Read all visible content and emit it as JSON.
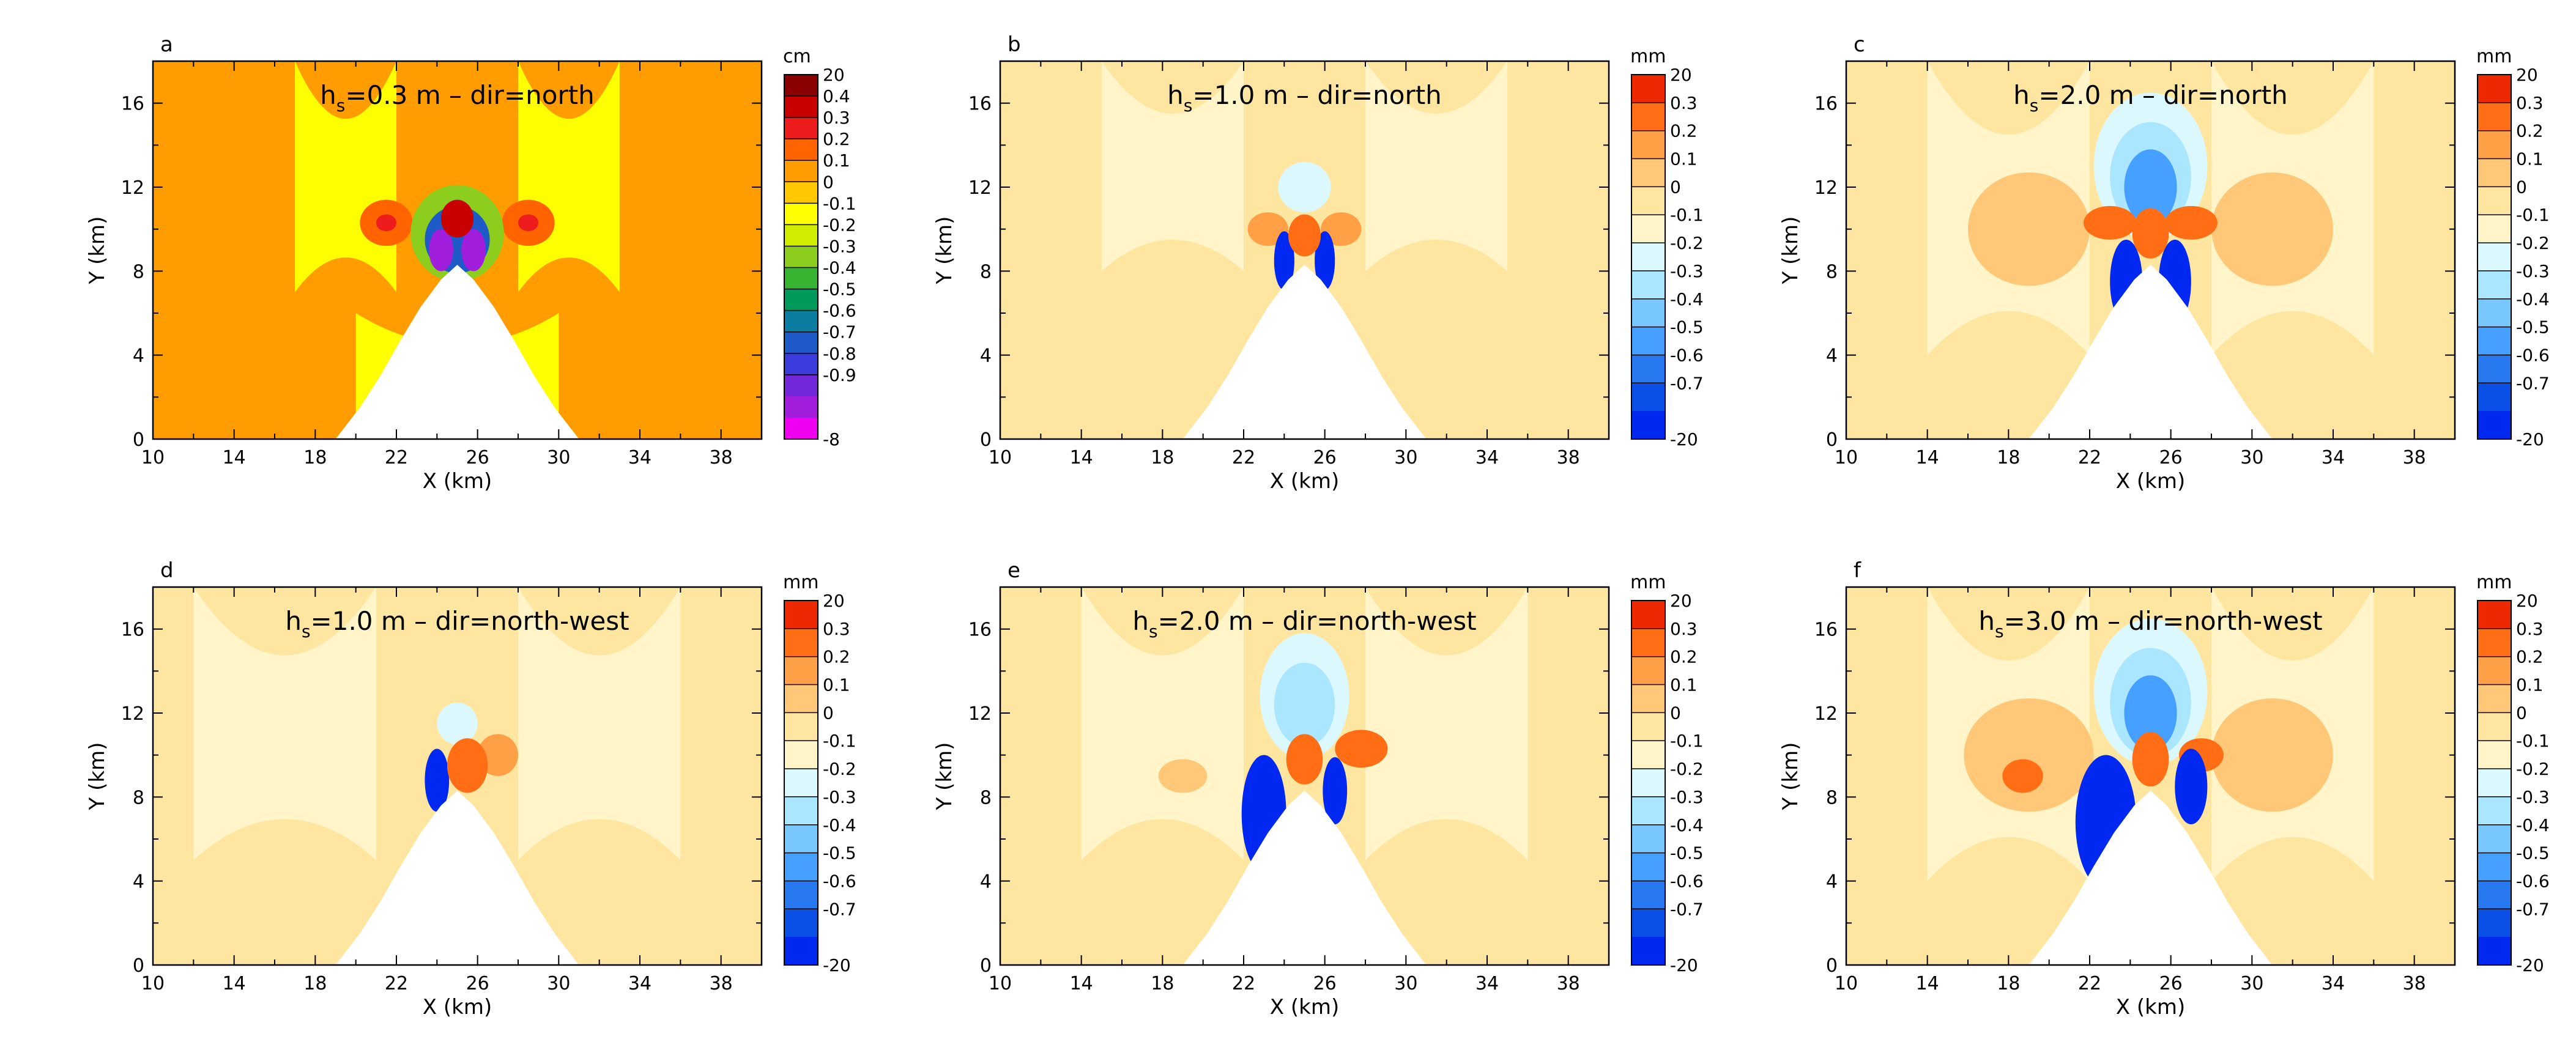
{
  "chart_data": [
    {
      "type": "heatmap",
      "panel_label": "a",
      "title_prefix": "h",
      "title_sub": "s",
      "title_rest": "=0.3 m – dir=north",
      "xlabel": "X (km)",
      "ylabel": "Y (km)",
      "xlim": [
        10,
        40
      ],
      "ylim": [
        0,
        18
      ],
      "xticks": [
        "10",
        "14",
        "18",
        "22",
        "26",
        "30",
        "34",
        "38"
      ],
      "yticks": [
        "0",
        "4",
        "8",
        "12",
        "16"
      ],
      "unit": "cm",
      "colorbar_labels": [
        "20",
        "0.4",
        "0.3",
        "0.2",
        "0.1",
        "0",
        "-0.1",
        "-0.2",
        "-0.3",
        "-0.4",
        "-0.5",
        "-0.6",
        "-0.7",
        "-0.8",
        "-0.9",
        "-8"
      ],
      "colorbar_colors": [
        "#8b0000",
        "#c80000",
        "#ee1c1c",
        "#ff6400",
        "#ff9d00",
        "#ffc800",
        "#ffff00",
        "#d2ec00",
        "#8ccd1e",
        "#37b432",
        "#009b5a",
        "#0a7da0",
        "#1e5ac8",
        "#3c3cdc",
        "#7328dc",
        "#a01edc",
        "#f000f0"
      ],
      "background_level": 0.12,
      "features": [
        {
          "kind": "band",
          "x0": 17,
          "y0": 7,
          "x1": 22,
          "y1": 18,
          "level": -0.05
        },
        {
          "kind": "band",
          "x0": 28,
          "y0": 7,
          "x1": 33,
          "y1": 18,
          "level": -0.05
        },
        {
          "kind": "band",
          "x0": 20,
          "y0": 0,
          "x1": 30,
          "y1": 6,
          "level": -0.05
        },
        {
          "kind": "blob",
          "x": 21.5,
          "y": 10.3,
          "rx": 1.3,
          "ry": 1.1,
          "level": 0.2
        },
        {
          "kind": "blob",
          "x": 21.5,
          "y": 10.3,
          "rx": 0.5,
          "ry": 0.4,
          "level": 0.3
        },
        {
          "kind": "blob",
          "x": 28.5,
          "y": 10.3,
          "rx": 1.3,
          "ry": 1.1,
          "level": 0.2
        },
        {
          "kind": "blob",
          "x": 28.5,
          "y": 10.3,
          "rx": 0.5,
          "ry": 0.4,
          "level": 0.3
        },
        {
          "kind": "blob",
          "x": 25,
          "y": 9.8,
          "rx": 2.3,
          "ry": 2.3,
          "level": -0.3
        },
        {
          "kind": "blob",
          "x": 25,
          "y": 9.5,
          "rx": 1.6,
          "ry": 1.6,
          "level": -0.7
        },
        {
          "kind": "blob",
          "x": 24.2,
          "y": 9.0,
          "rx": 0.6,
          "ry": 1.0,
          "level": -8
        },
        {
          "kind": "blob",
          "x": 25.8,
          "y": 9.0,
          "rx": 0.6,
          "ry": 1.0,
          "level": -8
        },
        {
          "kind": "blob",
          "x": 25,
          "y": 10.5,
          "rx": 0.8,
          "ry": 0.9,
          "level": 20
        }
      ]
    },
    {
      "type": "heatmap",
      "panel_label": "b",
      "title_prefix": "h",
      "title_sub": "s",
      "title_rest": "=1.0 m – dir=north",
      "xlabel": "X (km)",
      "ylabel": "Y (km)",
      "xlim": [
        10,
        40
      ],
      "ylim": [
        0,
        18
      ],
      "xticks": [
        "10",
        "14",
        "18",
        "22",
        "26",
        "30",
        "34",
        "38"
      ],
      "yticks": [
        "0",
        "4",
        "8",
        "12",
        "16"
      ],
      "unit": "mm",
      "colorbar_labels": [
        "20",
        "0.3",
        "0.2",
        "0.1",
        "0",
        "-0.1",
        "-0.2",
        "-0.3",
        "-0.4",
        "-0.5",
        "-0.6",
        "-0.7",
        "-20"
      ],
      "colorbar_colors": [
        "#ee2800",
        "#ff6e14",
        "#ffa046",
        "#ffc878",
        "#ffe6a0",
        "#fff5c8",
        "#dcf8ff",
        "#aae6ff",
        "#78c8ff",
        "#46a0ff",
        "#2878f0",
        "#0a50e6",
        "#0028f0"
      ],
      "background_level": 0.05,
      "features": [
        {
          "kind": "band",
          "x0": 15,
          "y0": 8,
          "x1": 22,
          "y1": 18,
          "level": -0.05
        },
        {
          "kind": "band",
          "x0": 28,
          "y0": 8,
          "x1": 35,
          "y1": 18,
          "level": -0.05
        },
        {
          "kind": "blob",
          "x": 25,
          "y": 12,
          "rx": 1.3,
          "ry": 1.2,
          "level": -0.15
        },
        {
          "kind": "blob",
          "x": 23.2,
          "y": 10,
          "rx": 1.0,
          "ry": 0.8,
          "level": 0.2
        },
        {
          "kind": "blob",
          "x": 26.8,
          "y": 10,
          "rx": 1.0,
          "ry": 0.8,
          "level": 0.2
        },
        {
          "kind": "blob",
          "x": 24.0,
          "y": 8.5,
          "rx": 0.5,
          "ry": 1.4,
          "level": -20
        },
        {
          "kind": "blob",
          "x": 26.0,
          "y": 8.5,
          "rx": 0.5,
          "ry": 1.4,
          "level": -20
        },
        {
          "kind": "blob",
          "x": 25,
          "y": 9.7,
          "rx": 0.8,
          "ry": 1.0,
          "level": 20
        }
      ]
    },
    {
      "type": "heatmap",
      "panel_label": "c",
      "title_prefix": "h",
      "title_sub": "s",
      "title_rest": "=2.0 m – dir=north",
      "xlabel": "X (km)",
      "ylabel": "Y (km)",
      "xlim": [
        10,
        40
      ],
      "ylim": [
        0,
        18
      ],
      "xticks": [
        "10",
        "14",
        "18",
        "22",
        "26",
        "30",
        "34",
        "38"
      ],
      "yticks": [
        "0",
        "4",
        "8",
        "12",
        "16"
      ],
      "unit": "mm",
      "colorbar_labels": [
        "20",
        "0.3",
        "0.2",
        "0.1",
        "0",
        "-0.1",
        "-0.2",
        "-0.3",
        "-0.4",
        "-0.5",
        "-0.6",
        "-0.7",
        "-20"
      ],
      "colorbar_colors": [
        "#ee2800",
        "#ff6e14",
        "#ffa046",
        "#ffc878",
        "#ffe6a0",
        "#fff5c8",
        "#dcf8ff",
        "#aae6ff",
        "#78c8ff",
        "#46a0ff",
        "#2878f0",
        "#0a50e6",
        "#0028f0"
      ],
      "background_level": 0.05,
      "features": [
        {
          "kind": "band",
          "x0": 14,
          "y0": 4,
          "x1": 22,
          "y1": 18,
          "level": -0.05
        },
        {
          "kind": "band",
          "x0": 28,
          "y0": 4,
          "x1": 36,
          "y1": 18,
          "level": -0.05
        },
        {
          "kind": "blob",
          "x": 19,
          "y": 10,
          "rx": 3.0,
          "ry": 2.7,
          "level": 0.15
        },
        {
          "kind": "blob",
          "x": 31,
          "y": 10,
          "rx": 3.0,
          "ry": 2.7,
          "level": 0.15
        },
        {
          "kind": "blob",
          "x": 25,
          "y": 13,
          "rx": 2.8,
          "ry": 3.5,
          "level": -0.15
        },
        {
          "kind": "blob",
          "x": 25,
          "y": 12.5,
          "rx": 2.0,
          "ry": 2.6,
          "level": -0.3
        },
        {
          "kind": "blob",
          "x": 25,
          "y": 12,
          "rx": 1.3,
          "ry": 1.8,
          "level": -0.5
        },
        {
          "kind": "blob",
          "x": 23.0,
          "y": 10.3,
          "rx": 1.3,
          "ry": 0.8,
          "level": 0.3
        },
        {
          "kind": "blob",
          "x": 27.0,
          "y": 10.3,
          "rx": 1.3,
          "ry": 0.8,
          "level": 0.3
        },
        {
          "kind": "blob",
          "x": 23.8,
          "y": 7.5,
          "rx": 0.8,
          "ry": 2.0,
          "level": -20
        },
        {
          "kind": "blob",
          "x": 26.2,
          "y": 7.5,
          "rx": 0.8,
          "ry": 2.0,
          "level": -20
        },
        {
          "kind": "blob",
          "x": 25,
          "y": 9.8,
          "rx": 0.9,
          "ry": 1.2,
          "level": 20
        }
      ]
    },
    {
      "type": "heatmap",
      "panel_label": "d",
      "title_prefix": "h",
      "title_sub": "s",
      "title_rest": "=1.0 m – dir=north-west",
      "xlabel": "X (km)",
      "ylabel": "Y (km)",
      "xlim": [
        10,
        40
      ],
      "ylim": [
        0,
        18
      ],
      "xticks": [
        "10",
        "14",
        "18",
        "22",
        "26",
        "30",
        "34",
        "38"
      ],
      "yticks": [
        "0",
        "4",
        "8",
        "12",
        "16"
      ],
      "unit": "mm",
      "colorbar_labels": [
        "20",
        "0.3",
        "0.2",
        "0.1",
        "0",
        "-0.1",
        "-0.2",
        "-0.3",
        "-0.4",
        "-0.5",
        "-0.6",
        "-0.7",
        "-20"
      ],
      "colorbar_colors": [
        "#ee2800",
        "#ff6e14",
        "#ffa046",
        "#ffc878",
        "#ffe6a0",
        "#fff5c8",
        "#dcf8ff",
        "#aae6ff",
        "#78c8ff",
        "#46a0ff",
        "#2878f0",
        "#0a50e6",
        "#0028f0"
      ],
      "background_level": 0.05,
      "features": [
        {
          "kind": "band",
          "x0": 12,
          "y0": 5,
          "x1": 21,
          "y1": 18,
          "level": -0.05
        },
        {
          "kind": "band",
          "x0": 28,
          "y0": 5,
          "x1": 36,
          "y1": 18,
          "level": -0.05
        },
        {
          "kind": "blob",
          "x": 25,
          "y": 11.5,
          "rx": 1.0,
          "ry": 1.0,
          "level": -0.15
        },
        {
          "kind": "blob",
          "x": 27.0,
          "y": 10,
          "rx": 1.0,
          "ry": 1.0,
          "level": 0.2
        },
        {
          "kind": "blob",
          "x": 24.0,
          "y": 8.8,
          "rx": 0.6,
          "ry": 1.5,
          "level": -20
        },
        {
          "kind": "blob",
          "x": 25.5,
          "y": 9.5,
          "rx": 1.0,
          "ry": 1.3,
          "level": 20
        }
      ]
    },
    {
      "type": "heatmap",
      "panel_label": "e",
      "title_prefix": "h",
      "title_sub": "s",
      "title_rest": "=2.0 m – dir=north-west",
      "xlabel": "X (km)",
      "ylabel": "Y (km)",
      "xlim": [
        10,
        40
      ],
      "ylim": [
        0,
        18
      ],
      "xticks": [
        "10",
        "14",
        "18",
        "22",
        "26",
        "30",
        "34",
        "38"
      ],
      "yticks": [
        "0",
        "4",
        "8",
        "12",
        "16"
      ],
      "unit": "mm",
      "colorbar_labels": [
        "20",
        "0.3",
        "0.2",
        "0.1",
        "0",
        "-0.1",
        "-0.2",
        "-0.3",
        "-0.4",
        "-0.5",
        "-0.6",
        "-0.7",
        "-20"
      ],
      "colorbar_colors": [
        "#ee2800",
        "#ff6e14",
        "#ffa046",
        "#ffc878",
        "#ffe6a0",
        "#fff5c8",
        "#dcf8ff",
        "#aae6ff",
        "#78c8ff",
        "#46a0ff",
        "#2878f0",
        "#0a50e6",
        "#0028f0"
      ],
      "background_level": 0.05,
      "features": [
        {
          "kind": "band",
          "x0": 14,
          "y0": 5,
          "x1": 22,
          "y1": 18,
          "level": -0.05
        },
        {
          "kind": "band",
          "x0": 28,
          "y0": 5,
          "x1": 36,
          "y1": 18,
          "level": -0.05
        },
        {
          "kind": "blob",
          "x": 19,
          "y": 9,
          "rx": 1.2,
          "ry": 0.8,
          "level": 0.15
        },
        {
          "kind": "blob",
          "x": 25,
          "y": 12.8,
          "rx": 2.2,
          "ry": 3.0,
          "level": -0.15
        },
        {
          "kind": "blob",
          "x": 25,
          "y": 12.4,
          "rx": 1.5,
          "ry": 2.0,
          "level": -0.3
        },
        {
          "kind": "blob",
          "x": 27.8,
          "y": 10.3,
          "rx": 1.3,
          "ry": 0.9,
          "level": 0.3
        },
        {
          "kind": "blob",
          "x": 23.0,
          "y": 7.2,
          "rx": 1.1,
          "ry": 2.8,
          "level": -20
        },
        {
          "kind": "blob",
          "x": 26.5,
          "y": 8.3,
          "rx": 0.6,
          "ry": 1.6,
          "level": -20
        },
        {
          "kind": "blob",
          "x": 25,
          "y": 9.8,
          "rx": 0.9,
          "ry": 1.2,
          "level": 20
        }
      ]
    },
    {
      "type": "heatmap",
      "panel_label": "f",
      "title_prefix": "h",
      "title_sub": "s",
      "title_rest": "=3.0 m – dir=north-west",
      "xlabel": "X (km)",
      "ylabel": "Y (km)",
      "xlim": [
        10,
        40
      ],
      "ylim": [
        0,
        18
      ],
      "xticks": [
        "10",
        "14",
        "18",
        "22",
        "26",
        "30",
        "34",
        "38"
      ],
      "yticks": [
        "0",
        "4",
        "8",
        "12",
        "16"
      ],
      "unit": "mm",
      "colorbar_labels": [
        "20",
        "0.3",
        "0.2",
        "0.1",
        "0",
        "-0.1",
        "-0.2",
        "-0.3",
        "-0.4",
        "-0.5",
        "-0.6",
        "-0.7",
        "-20"
      ],
      "colorbar_colors": [
        "#ee2800",
        "#ff6e14",
        "#ffa046",
        "#ffc878",
        "#ffe6a0",
        "#fff5c8",
        "#dcf8ff",
        "#aae6ff",
        "#78c8ff",
        "#46a0ff",
        "#2878f0",
        "#0a50e6",
        "#0028f0"
      ],
      "background_level": 0.05,
      "features": [
        {
          "kind": "band",
          "x0": 14,
          "y0": 4,
          "x1": 22,
          "y1": 18,
          "level": -0.05
        },
        {
          "kind": "band",
          "x0": 28,
          "y0": 4,
          "x1": 36,
          "y1": 18,
          "level": -0.05
        },
        {
          "kind": "blob",
          "x": 19,
          "y": 10,
          "rx": 3.2,
          "ry": 2.7,
          "level": 0.15
        },
        {
          "kind": "blob",
          "x": 31,
          "y": 10,
          "rx": 3.0,
          "ry": 2.7,
          "level": 0.15
        },
        {
          "kind": "blob",
          "x": 18.7,
          "y": 9.0,
          "rx": 1.0,
          "ry": 0.8,
          "level": 0.3
        },
        {
          "kind": "blob",
          "x": 25,
          "y": 13,
          "rx": 2.8,
          "ry": 3.5,
          "level": -0.15
        },
        {
          "kind": "blob",
          "x": 25,
          "y": 12.5,
          "rx": 2.0,
          "ry": 2.6,
          "level": -0.3
        },
        {
          "kind": "blob",
          "x": 25,
          "y": 12,
          "rx": 1.3,
          "ry": 1.8,
          "level": -0.5
        },
        {
          "kind": "blob",
          "x": 27.5,
          "y": 10,
          "rx": 1.1,
          "ry": 0.8,
          "level": 0.3
        },
        {
          "kind": "blob",
          "x": 22.8,
          "y": 6.8,
          "rx": 1.5,
          "ry": 3.2,
          "level": -20
        },
        {
          "kind": "blob",
          "x": 27.0,
          "y": 8.5,
          "rx": 0.8,
          "ry": 1.8,
          "level": -20
        },
        {
          "kind": "blob",
          "x": 25,
          "y": 9.8,
          "rx": 0.9,
          "ry": 1.3,
          "level": 20
        }
      ]
    }
  ]
}
